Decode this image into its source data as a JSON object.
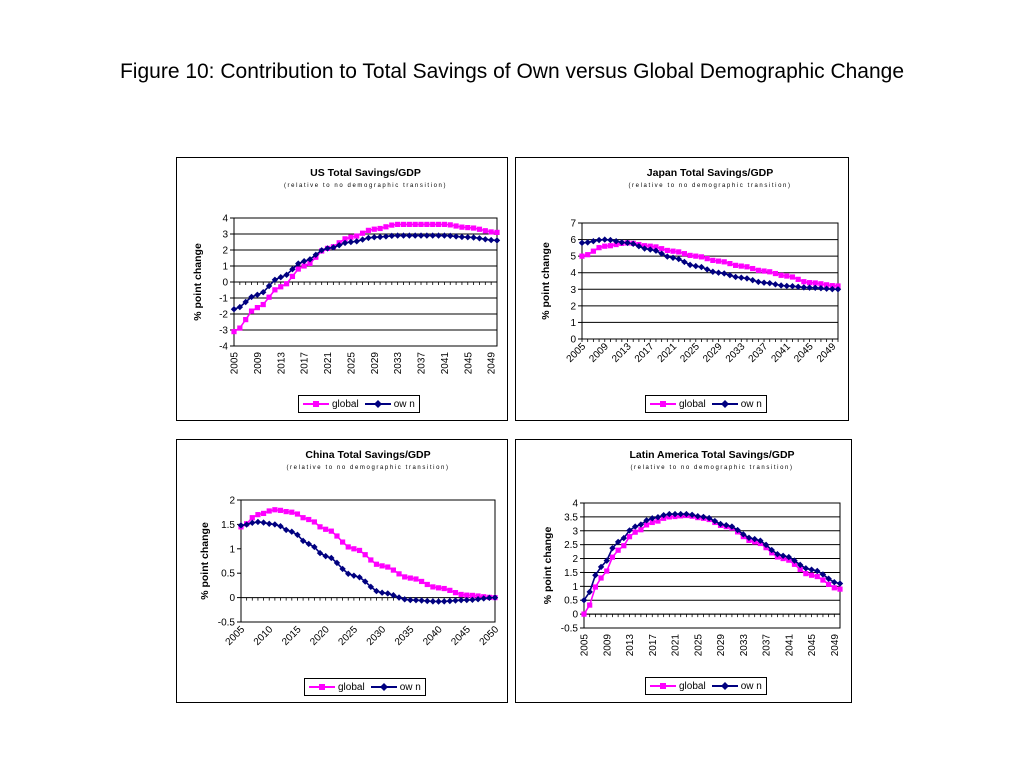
{
  "figure_title": "Figure 10: Contribution to Total Savings of Own versus Global Demographic Change",
  "colors": {
    "global": "#FF00FF",
    "own": "#000080",
    "gridline": "#000000"
  },
  "chart_data": [
    {
      "type": "line",
      "title": "US Total Savings/GDP",
      "subtitle": "(relative to no demographic transition)",
      "ylabel": "% point change",
      "xlabel": "",
      "ylim": [
        -4,
        4
      ],
      "yticks": [
        "-4",
        "-3",
        "-2",
        "-1",
        "0",
        "1",
        "2",
        "3",
        "4"
      ],
      "ytick_values": [
        -4,
        -3,
        -2,
        -1,
        0,
        1,
        2,
        3,
        4
      ],
      "xlim": [
        2005,
        2050
      ],
      "xtick_values": [
        2005,
        2009,
        2013,
        2017,
        2021,
        2025,
        2029,
        2033,
        2037,
        2041,
        2045,
        2049
      ],
      "xticks": [
        "2005",
        "2009",
        "2013",
        "2017",
        "2021",
        "2025",
        "2029",
        "2033",
        "2037",
        "2041",
        "2045",
        "2049"
      ],
      "xtick_rotation": -90,
      "grid": true,
      "legend_position": "bottom",
      "legend": [
        "global",
        "ow n"
      ],
      "x": [
        2005,
        2009,
        2013,
        2017,
        2021,
        2025,
        2029,
        2033,
        2037,
        2041,
        2045,
        2050
      ],
      "series": [
        {
          "name": "global",
          "values": [
            -3.1,
            -1.6,
            -0.3,
            1.0,
            2.1,
            2.8,
            3.3,
            3.6,
            3.6,
            3.6,
            3.4,
            3.1
          ]
        },
        {
          "name": "ow n",
          "values": [
            -1.7,
            -0.8,
            0.3,
            1.3,
            2.1,
            2.5,
            2.8,
            2.9,
            2.9,
            2.9,
            2.8,
            2.6
          ]
        }
      ]
    },
    {
      "type": "line",
      "title": "Japan Total Savings/GDP",
      "subtitle": "(relative to no demographic transition)",
      "ylabel": "% point change",
      "xlabel": "",
      "ylim": [
        0,
        7
      ],
      "yticks": [
        "0",
        "1",
        "2",
        "3",
        "4",
        "5",
        "6",
        "7"
      ],
      "ytick_values": [
        0,
        1,
        2,
        3,
        4,
        5,
        6,
        7
      ],
      "xlim": [
        2005,
        2050
      ],
      "xtick_values": [
        2005,
        2009,
        2013,
        2017,
        2021,
        2025,
        2029,
        2033,
        2037,
        2041,
        2045,
        2049
      ],
      "xticks": [
        "2005",
        "2009",
        "2013",
        "2017",
        "2021",
        "2025",
        "2029",
        "2033",
        "2037",
        "2041",
        "2045",
        "2049"
      ],
      "xtick_rotation": -45,
      "grid": true,
      "legend_position": "bottom",
      "legend": [
        "global",
        "ow n"
      ],
      "x": [
        2005,
        2009,
        2013,
        2017,
        2021,
        2025,
        2029,
        2033,
        2037,
        2041,
        2045,
        2050
      ],
      "series": [
        {
          "name": "global",
          "values": [
            5.0,
            5.6,
            5.8,
            5.6,
            5.3,
            5.0,
            4.7,
            4.4,
            4.1,
            3.8,
            3.4,
            3.2
          ]
        },
        {
          "name": "ow n",
          "values": [
            5.8,
            6.0,
            5.8,
            5.4,
            4.9,
            4.4,
            4.0,
            3.7,
            3.4,
            3.2,
            3.1,
            3.0
          ]
        }
      ]
    },
    {
      "type": "line",
      "title": "China Total Savings/GDP",
      "subtitle": "(relative to no demographic transition)",
      "ylabel": "% point change",
      "xlabel": "",
      "ylim": [
        -0.5,
        2
      ],
      "yticks": [
        "-0.5",
        "0",
        "0.5",
        "1",
        "1.5",
        "2"
      ],
      "ytick_values": [
        -0.5,
        0,
        0.5,
        1,
        1.5,
        2
      ],
      "xlim": [
        2005,
        2050
      ],
      "xtick_values": [
        2005,
        2010,
        2015,
        2020,
        2025,
        2030,
        2035,
        2040,
        2045,
        2050
      ],
      "xticks": [
        "2005",
        "2010",
        "2015",
        "2020",
        "2025",
        "2030",
        "2035",
        "2040",
        "2045",
        "2050"
      ],
      "xtick_rotation": -45,
      "grid": false,
      "legend_position": "bottom",
      "legend": [
        "global",
        "ow n"
      ],
      "x": [
        2005,
        2008,
        2011,
        2014,
        2017,
        2020,
        2025,
        2030,
        2035,
        2040,
        2045,
        2050
      ],
      "series": [
        {
          "name": "global",
          "values": [
            1.45,
            1.7,
            1.8,
            1.75,
            1.6,
            1.4,
            1.0,
            0.65,
            0.4,
            0.2,
            0.05,
            0.0
          ]
        },
        {
          "name": "ow n",
          "values": [
            1.48,
            1.55,
            1.5,
            1.35,
            1.1,
            0.85,
            0.45,
            0.1,
            -0.05,
            -0.08,
            -0.05,
            0.0
          ]
        }
      ]
    },
    {
      "type": "line",
      "title": "Latin America Total Savings/GDP",
      "subtitle": "(relative to no demographic transition)",
      "ylabel": "% point change",
      "xlabel": "",
      "ylim": [
        -0.5,
        4
      ],
      "yticks": [
        "-0.5",
        "0",
        "0.5",
        "1",
        "1.5",
        "2",
        "2.5",
        "3",
        "3.5",
        "4"
      ],
      "ytick_values": [
        -0.5,
        0,
        0.5,
        1,
        1.5,
        2,
        2.5,
        3,
        3.5,
        4
      ],
      "xlim": [
        2005,
        2050
      ],
      "xtick_values": [
        2005,
        2009,
        2013,
        2017,
        2021,
        2025,
        2029,
        2033,
        2037,
        2041,
        2045,
        2049
      ],
      "xticks": [
        "2005",
        "2009",
        "2013",
        "2017",
        "2021",
        "2025",
        "2029",
        "2033",
        "2037",
        "2041",
        "2045",
        "2049"
      ],
      "xtick_rotation": -90,
      "grid": true,
      "legend_position": "bottom",
      "legend": [
        "global",
        "ow n"
      ],
      "x": [
        2005,
        2008,
        2011,
        2014,
        2017,
        2020,
        2023,
        2026,
        2030,
        2035,
        2040,
        2045,
        2050
      ],
      "series": [
        {
          "name": "global",
          "values": [
            0.0,
            1.3,
            2.3,
            2.95,
            3.3,
            3.5,
            3.55,
            3.45,
            3.15,
            2.6,
            2.0,
            1.4,
            0.9
          ]
        },
        {
          "name": "ow n",
          "values": [
            0.5,
            1.7,
            2.6,
            3.15,
            3.45,
            3.6,
            3.6,
            3.5,
            3.2,
            2.7,
            2.1,
            1.6,
            1.1
          ]
        }
      ]
    }
  ]
}
